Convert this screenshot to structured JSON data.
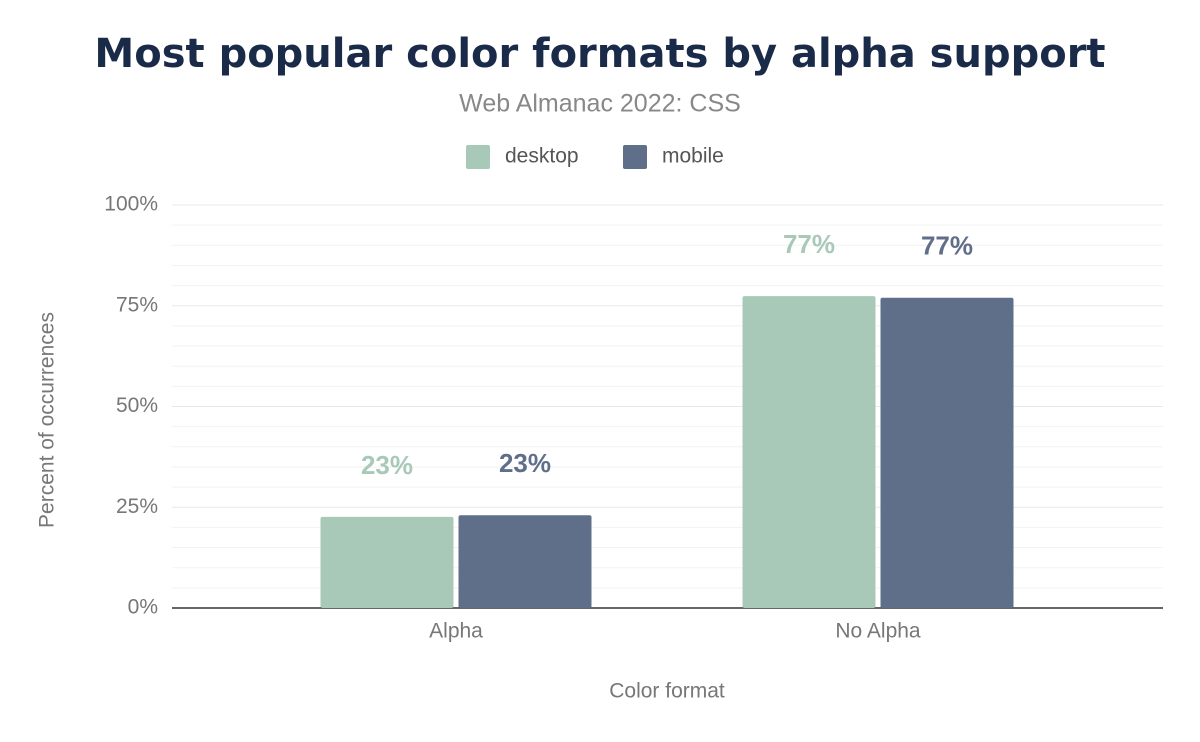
{
  "chart_data": {
    "type": "bar",
    "title": "Most popular color formats by alpha support",
    "subtitle": "Web Almanac 2022: CSS",
    "x_label": "Color format",
    "y_label": "Percent of occurrences",
    "categories": [
      "Alpha",
      "No Alpha"
    ],
    "series": [
      {
        "name": "desktop",
        "color": "#a8c9b8",
        "values": [
          22.6,
          77.4
        ],
        "value_labels": [
          "23%",
          "77%"
        ]
      },
      {
        "name": "mobile",
        "color": "#5f6f8a",
        "values": [
          23.0,
          77.0
        ],
        "value_labels": [
          "23%",
          "77%"
        ]
      }
    ],
    "ylim": [
      0,
      100
    ],
    "yticks": [
      {
        "value": 0,
        "label": "0%"
      },
      {
        "value": 25,
        "label": "25%"
      },
      {
        "value": 50,
        "label": "50%"
      },
      {
        "value": 75,
        "label": "75%"
      },
      {
        "value": 100,
        "label": "100%"
      }
    ],
    "grid": true,
    "legend": "top"
  }
}
